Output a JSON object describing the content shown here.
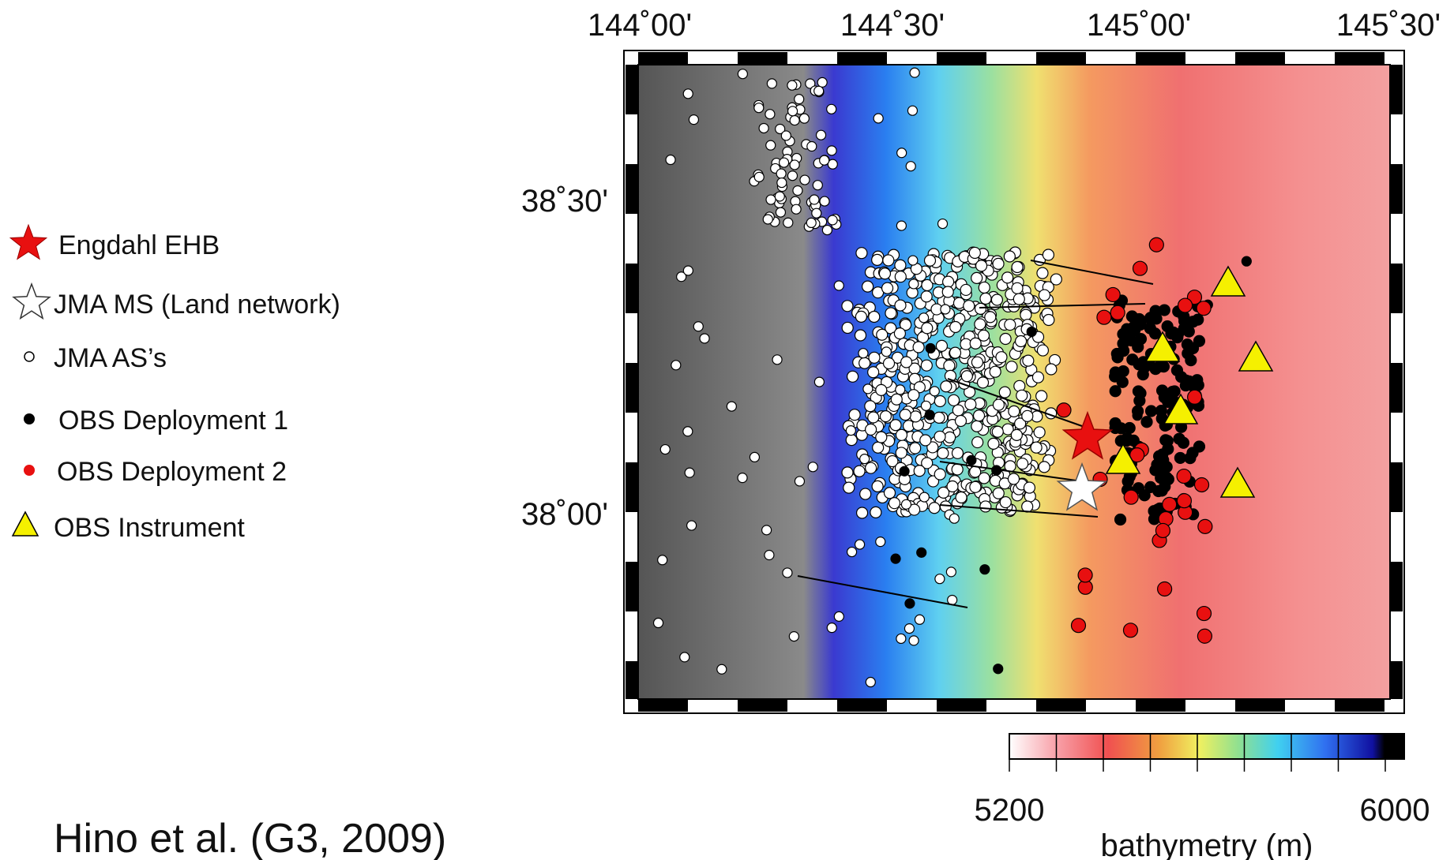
{
  "map": {
    "x_labels": [
      "144˚00'",
      "144˚30'",
      "145˚00'",
      "145˚30'"
    ],
    "y_labels": [
      "38˚30'",
      "38˚00'"
    ]
  },
  "legend": [
    {
      "label": "Engdahl EHB"
    },
    {
      "label": "JMA MS (Land network)"
    },
    {
      "label": "JMA AS’s"
    },
    {
      "label": "OBS Deployment 1"
    },
    {
      "label": "OBS Deployment 2"
    },
    {
      "label": "OBS Instrument"
    }
  ],
  "colorbar": {
    "min_label": "5200",
    "max_label": "6000",
    "title": "bathymetry (m)"
  },
  "citation": "Hino et al. (G3, 2009)"
}
